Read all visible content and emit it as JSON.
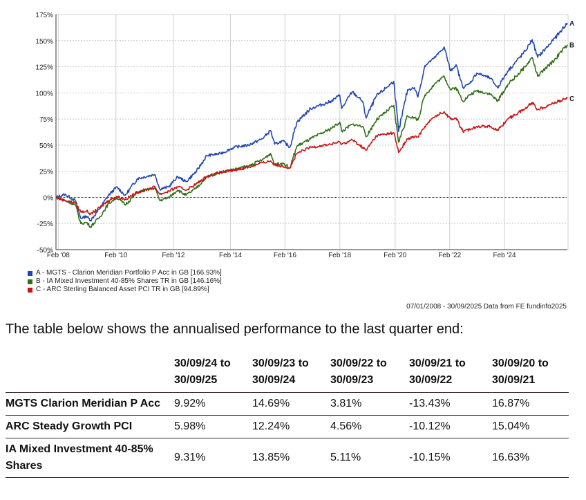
{
  "chart_data": {
    "type": "line",
    "title": "",
    "xlabel": "",
    "ylabel": "",
    "ylim": [
      -50,
      175
    ],
    "xlim": [
      2008.02,
      2025.75
    ],
    "yticks": [
      -50,
      -25,
      0,
      25,
      50,
      75,
      100,
      125,
      150,
      175
    ],
    "ytick_labels": [
      "-50%",
      "-25%",
      "0%",
      "25%",
      "50%",
      "75%",
      "100%",
      "125%",
      "150%",
      "175%"
    ],
    "xticks": [
      {
        "label": "Feb '08",
        "x": 2008.1
      },
      {
        "label": "Feb '10",
        "x": 2010.1
      },
      {
        "label": "Feb '12",
        "x": 2012.09
      },
      {
        "label": "Feb '14",
        "x": 2014.07
      },
      {
        "label": "Feb '16",
        "x": 2015.96
      },
      {
        "label": "Feb '18",
        "x": 2017.86
      },
      {
        "label": "Feb '20",
        "x": 2019.78
      },
      {
        "label": "Feb '22",
        "x": 2021.67
      },
      {
        "label": "Feb '24",
        "x": 2023.57
      }
    ],
    "grid": true,
    "legend_placement": "bottom-left",
    "x": [
      2008.02,
      2008.33,
      2008.69,
      2008.88,
      2009.08,
      2009.22,
      2009.53,
      2009.84,
      2010.13,
      2010.42,
      2010.85,
      2011.45,
      2011.62,
      2011.93,
      2012.24,
      2012.53,
      2012.89,
      2013.25,
      2013.73,
      2014.21,
      2014.69,
      2015.17,
      2015.46,
      2015.6,
      2015.89,
      2016.13,
      2016.37,
      2016.85,
      2017.57,
      2017.86,
      2017.93,
      2018.29,
      2018.65,
      2018.77,
      2019.13,
      2019.73,
      2019.9,
      2020.21,
      2020.45,
      2020.57,
      2020.81,
      2021.17,
      2021.48,
      2021.7,
      2021.89,
      2022.13,
      2022.37,
      2022.61,
      2023.09,
      2023.33,
      2023.69,
      2024.29,
      2024.53,
      2024.72,
      2025.25,
      2025.75
    ],
    "series": [
      {
        "name": "A - MGTS - Clarion Meridian Portfolio P Acc in GB [166.93%]",
        "end_label": "A",
        "color": "#2046b4",
        "values": [
          0,
          3,
          -3,
          -20,
          -18,
          -22,
          -11,
          2,
          10,
          2,
          18,
          22,
          8,
          10,
          20,
          15,
          25,
          40,
          42,
          48,
          50,
          56,
          64,
          51,
          54,
          48,
          72,
          85,
          92,
          98,
          85,
          101,
          92,
          76,
          97,
          111,
          63,
          103,
          105,
          96,
          126,
          134,
          144,
          121,
          127,
          105,
          109,
          119,
          114,
          105,
          121,
          140,
          151,
          134,
          150,
          166.93
        ]
      },
      {
        "name": "B - IA Mixed Investment 40-85% Shares TR in GB [146.16%]",
        "end_label": "B",
        "color": "#2e7016",
        "values": [
          0,
          -3,
          -7,
          -25,
          -24,
          -28,
          -19,
          -6,
          0,
          -7,
          5,
          9,
          -3,
          0,
          7,
          2,
          9,
          20,
          24,
          27,
          30,
          36,
          42,
          32,
          33,
          28,
          49,
          56,
          66,
          72,
          63,
          70,
          68,
          58,
          74,
          88,
          53,
          78,
          76,
          74,
          98,
          109,
          116,
          103,
          105,
          92,
          98,
          102,
          99,
          92,
          108,
          125,
          134,
          116,
          130,
          146.16
        ]
      },
      {
        "name": "C - ARC Sterling Balanced Asset PCI TR in GB [94.89%]",
        "end_label": "C",
        "color": "#c81414",
        "values": [
          0,
          -3,
          -5,
          -14,
          -13,
          -16,
          -10,
          -3,
          1,
          -2,
          5,
          10,
          3,
          6,
          10,
          7,
          13,
          20,
          24,
          26,
          29,
          33,
          35,
          31,
          30,
          28,
          42,
          48,
          51,
          53,
          51,
          55,
          48,
          45,
          59,
          62,
          43,
          56,
          58,
          58,
          68,
          78,
          82,
          75,
          76,
          63,
          65,
          68,
          68,
          64,
          75,
          85,
          91,
          84,
          90,
          94.89
        ]
      }
    ]
  },
  "source_note": "07/01/2008 - 30/09/2025 Data from FE fundinfo2025",
  "intro": "The table below shows the annualised performance to the last quarter end:",
  "table": {
    "headers": [
      "",
      "30/09/24 to 30/09/25",
      "30/09/23 to 30/09/24",
      "30/09/22 to 30/09/23",
      "30/09/21 to 30/09/22",
      "30/09/20 to 30/09/21"
    ],
    "header_lines": [
      [
        "30/09/24 to",
        "30/09/25"
      ],
      [
        "30/09/23 to",
        "30/09/24"
      ],
      [
        "30/09/22 to",
        "30/09/23"
      ],
      [
        "30/09/21 to",
        "30/09/22"
      ],
      [
        "30/09/20 to",
        "30/09/21"
      ]
    ],
    "rows": [
      {
        "name": "MGTS Clarion Meridian P Acc",
        "values": [
          "9.92%",
          "14.69%",
          "3.81%",
          "-13.43%",
          "16.87%"
        ]
      },
      {
        "name": "ARC Steady Growth PCI",
        "values": [
          "5.98%",
          "12.24%",
          "4.56%",
          "-10.12%",
          "15.04%"
        ]
      },
      {
        "name": "IA Mixed Investment 40-85% Shares",
        "values": [
          "9.31%",
          "13.85%",
          "5.11%",
          "-10.15%",
          "16.63%"
        ]
      }
    ]
  }
}
